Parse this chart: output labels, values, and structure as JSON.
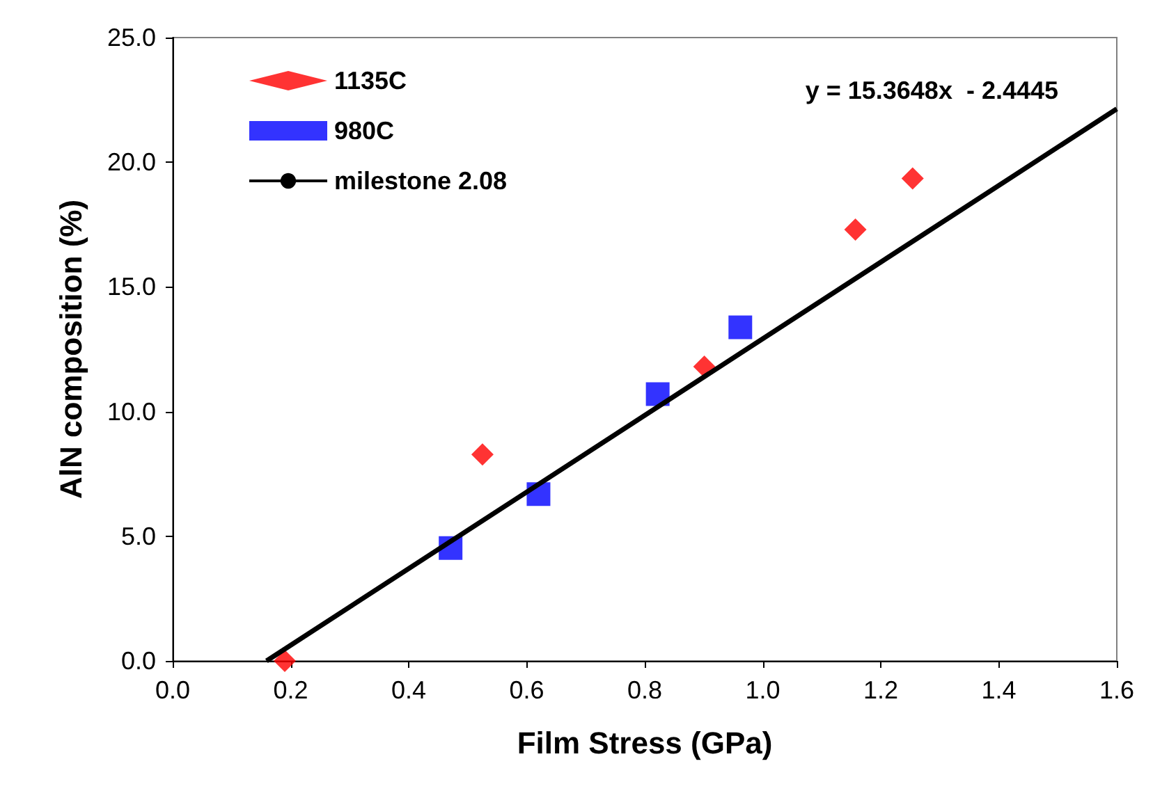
{
  "chart_data": {
    "type": "scatter",
    "xlabel": "Film Stress (GPa)",
    "ylabel": "AlN composition (%)",
    "xlim": [
      0,
      1.6
    ],
    "ylim": [
      0,
      25
    ],
    "xticks": [
      {
        "value": 0,
        "label": "0.0"
      },
      {
        "value": 0.2,
        "label": "0.2"
      },
      {
        "value": 0.4,
        "label": "0.4"
      },
      {
        "value": 0.6,
        "label": "0.6"
      },
      {
        "value": 0.8,
        "label": "0.8"
      },
      {
        "value": 1,
        "label": "1.0"
      },
      {
        "value": 1.2,
        "label": "1.2"
      },
      {
        "value": 1.4,
        "label": "1.4"
      },
      {
        "value": 1.6,
        "label": "1.6"
      }
    ],
    "yticks": [
      {
        "value": 0,
        "label": "0.0"
      },
      {
        "value": 5,
        "label": "5.0"
      },
      {
        "value": 10,
        "label": "10.0"
      },
      {
        "value": 15,
        "label": "15.0"
      },
      {
        "value": 20,
        "label": "20.0"
      },
      {
        "value": 25,
        "label": "25.0"
      }
    ],
    "grid": false,
    "legend": "top left",
    "annotations": [
      "y = 15.3648x  - 2.4445"
    ],
    "series": [
      {
        "name": "1135C",
        "color": "#ff0000",
        "marker": "diamond",
        "x": [
          0.19,
          0.525,
          0.901,
          1.157,
          1.254
        ],
        "values": [
          0,
          8.28,
          11.8,
          17.3,
          19.35
        ]
      },
      {
        "name": "980C",
        "color": "#0000ff",
        "marker": "square",
        "x": [
          0.471,
          0.62,
          0.822,
          0.962
        ],
        "values": [
          4.53,
          6.69,
          10.7,
          13.38
        ]
      },
      {
        "name": "milestone 2.08",
        "type": "line",
        "color": "#000000",
        "marker": "none",
        "line_style": "solid",
        "x": [
          0.1591,
          1.6
        ],
        "values": [
          0,
          22.14
        ]
      }
    ]
  }
}
